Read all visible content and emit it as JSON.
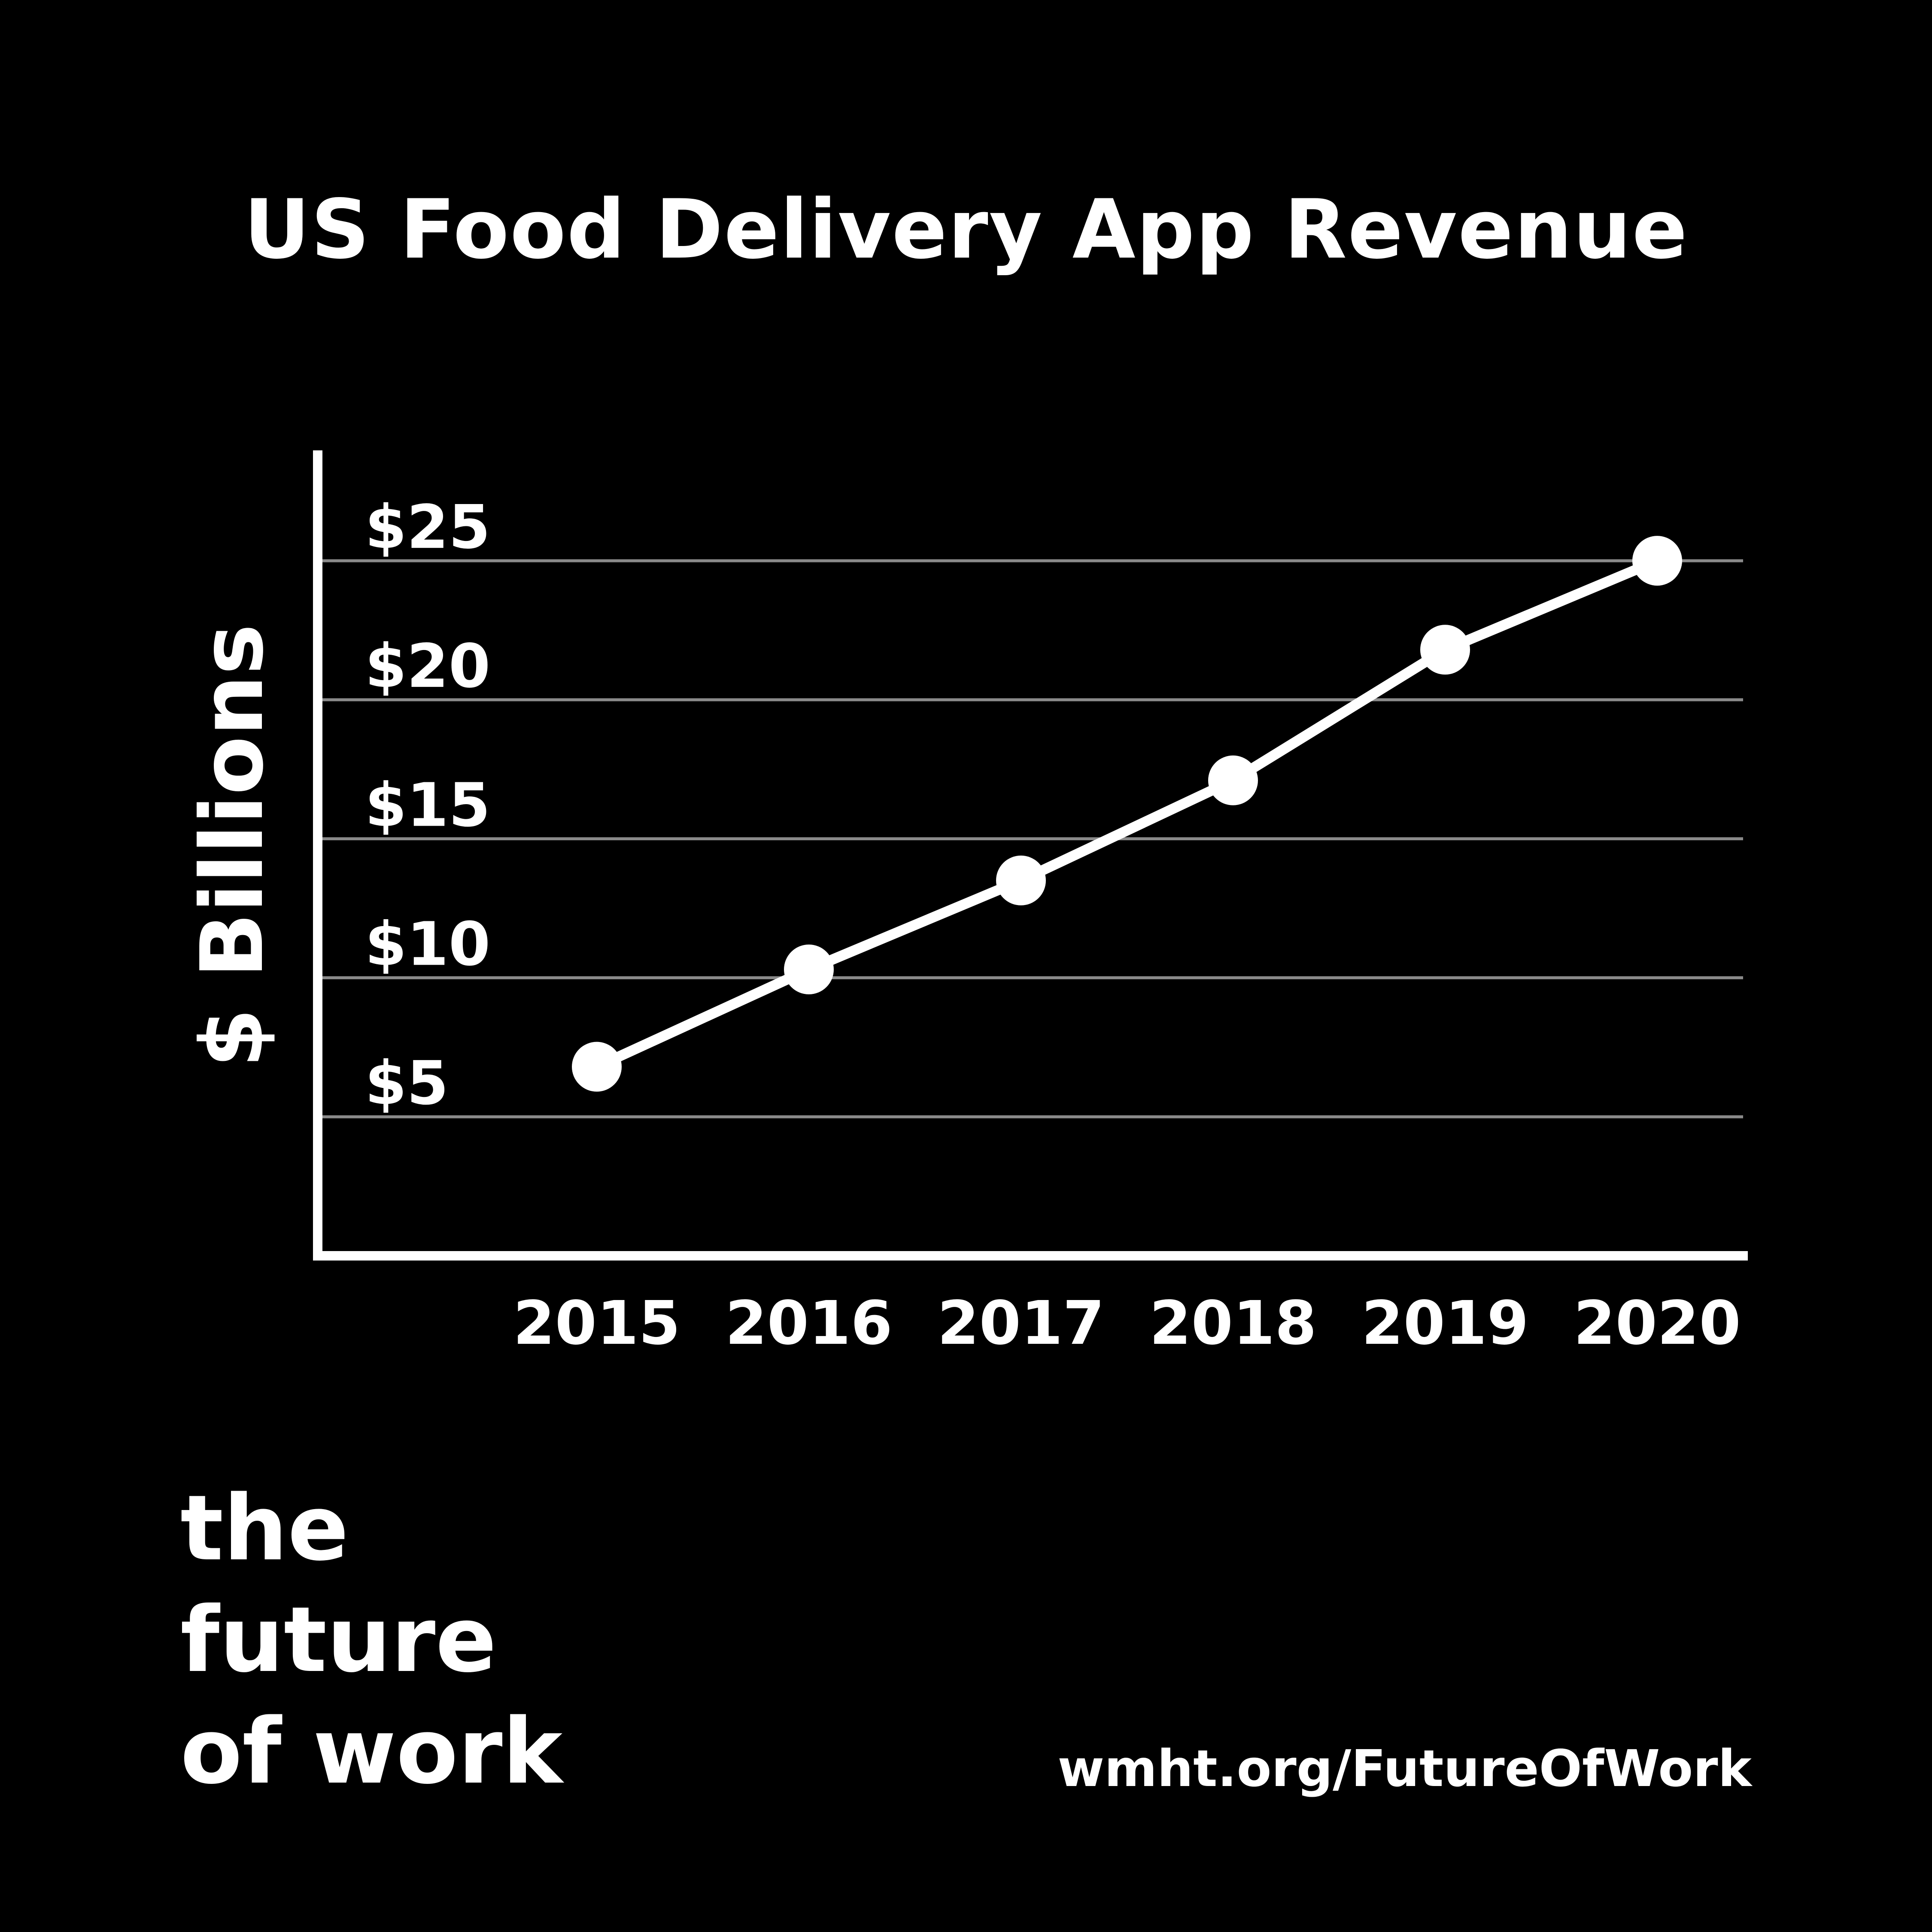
{
  "colors": {
    "background": "#000000",
    "foreground": "#ffffff",
    "gridline": "#8a8a8a"
  },
  "chart_data": {
    "type": "line",
    "title": "US Food Delivery App Revenue",
    "ylabel": "$ Billions",
    "xlabel": "",
    "x": [
      "2015",
      "2016",
      "2017",
      "2018",
      "2019",
      "2020"
    ],
    "series": [
      {
        "values": [
          6.8,
          10.3,
          13.5,
          17.1,
          21.8,
          25
        ]
      }
    ],
    "yticks": [
      5,
      10,
      15,
      20,
      25
    ],
    "ytick_labels": [
      "$5",
      "$10",
      "$15",
      "$20",
      "$25"
    ],
    "ylim": [
      0,
      28.8
    ],
    "grid": true,
    "legend": "none"
  },
  "branding": {
    "lines": [
      "the",
      "future",
      "of work"
    ],
    "url": "wmht.org/FutureOfWork"
  }
}
